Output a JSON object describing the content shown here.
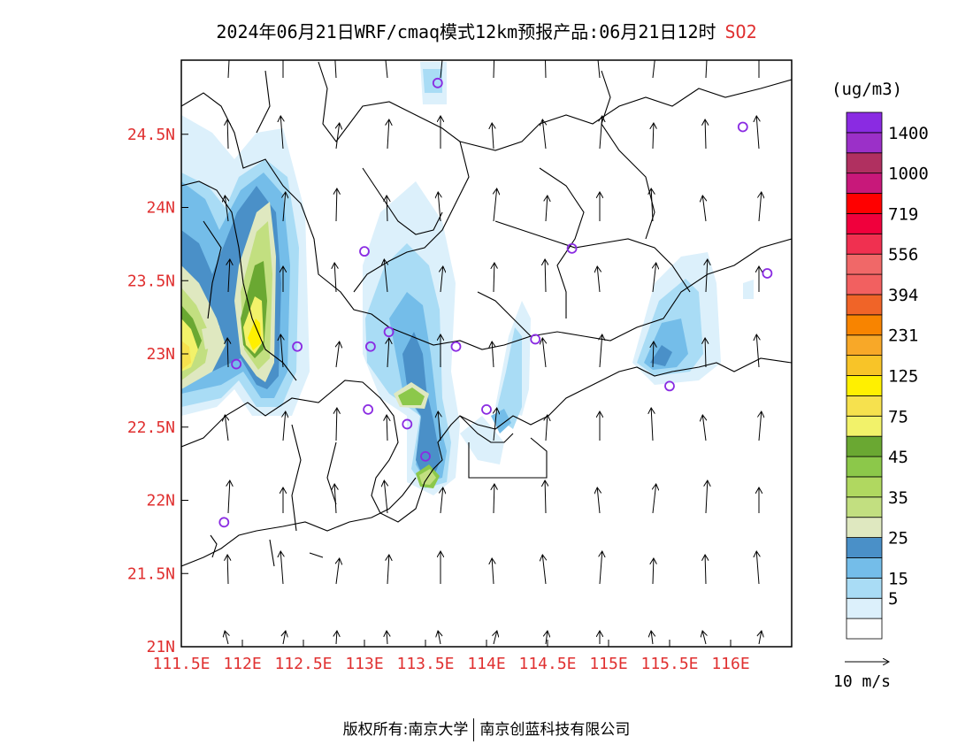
{
  "title": {
    "main": "2024年06月21日WRF/cmaq模式12km预报产品:06月21日12时",
    "species": "SO2"
  },
  "unit": "(ug/m3)",
  "wind_reference": "10 m/s",
  "footer": {
    "left": "版权所有:南京大学",
    "right": "南京创蓝科技有限公司"
  },
  "colors": {
    "tick": "#e03030",
    "coast": "#000000",
    "station": "#8a2be2"
  },
  "map_data": {
    "lon_range": [
      111.5,
      116.5
    ],
    "lat_range": [
      21.0,
      25.0
    ],
    "x_ticks": [
      "111.5E",
      "112E",
      "112.5E",
      "113E",
      "113.5E",
      "114E",
      "114.5E",
      "115E",
      "115.5E",
      "116E"
    ],
    "y_ticks": [
      "21N",
      "21.5N",
      "22N",
      "22.5N",
      "23N",
      "23.5N",
      "24N",
      "24.5N"
    ],
    "colorbar": [
      {
        "label": "",
        "color": "#ffffff"
      },
      {
        "label": "5",
        "color": "#dcf0fb"
      },
      {
        "label": "15",
        "color": "#a9dcf5"
      },
      {
        "label": "",
        "color": "#74bde9"
      },
      {
        "label": "25",
        "color": "#4a90c8"
      },
      {
        "label": "",
        "color": "#dfe8c0"
      },
      {
        "label": "35",
        "color": "#c2df80"
      },
      {
        "label": "",
        "color": "#b0d860"
      },
      {
        "label": "45",
        "color": "#8cc84a"
      },
      {
        "label": "",
        "color": "#6aa832"
      },
      {
        "label": "75",
        "color": "#f2f26a"
      },
      {
        "label": "",
        "color": "#f6e14e"
      },
      {
        "label": "125",
        "color": "#fff000"
      },
      {
        "label": "",
        "color": "#f8c428"
      },
      {
        "label": "231",
        "color": "#f8a828"
      },
      {
        "label": "",
        "color": "#f88400"
      },
      {
        "label": "394",
        "color": "#f06428"
      },
      {
        "label": "",
        "color": "#f26060"
      },
      {
        "label": "556",
        "color": "#f06868"
      },
      {
        "label": "",
        "color": "#f03050"
      },
      {
        "label": "719",
        "color": "#f0003c"
      },
      {
        "label": "",
        "color": "#ff0000"
      },
      {
        "label": "1000",
        "color": "#c8187a"
      },
      {
        "label": "",
        "color": "#b03060"
      },
      {
        "label": "1400",
        "color": "#9b30c8"
      },
      {
        "label": "",
        "color": "#8a2be2"
      }
    ],
    "stations": [
      [
        113.6,
        24.85
      ],
      [
        116.1,
        24.55
      ],
      [
        116.3,
        23.55
      ],
      [
        114.7,
        23.72
      ],
      [
        113.0,
        23.7
      ],
      [
        112.45,
        23.05
      ],
      [
        113.05,
        23.05
      ],
      [
        113.2,
        23.15
      ],
      [
        113.75,
        23.05
      ],
      [
        114.4,
        23.1
      ],
      [
        111.95,
        22.93
      ],
      [
        113.03,
        22.62
      ],
      [
        113.35,
        22.52
      ],
      [
        114.0,
        22.62
      ],
      [
        115.5,
        22.78
      ],
      [
        113.5,
        22.3
      ],
      [
        111.85,
        21.85
      ]
    ]
  }
}
